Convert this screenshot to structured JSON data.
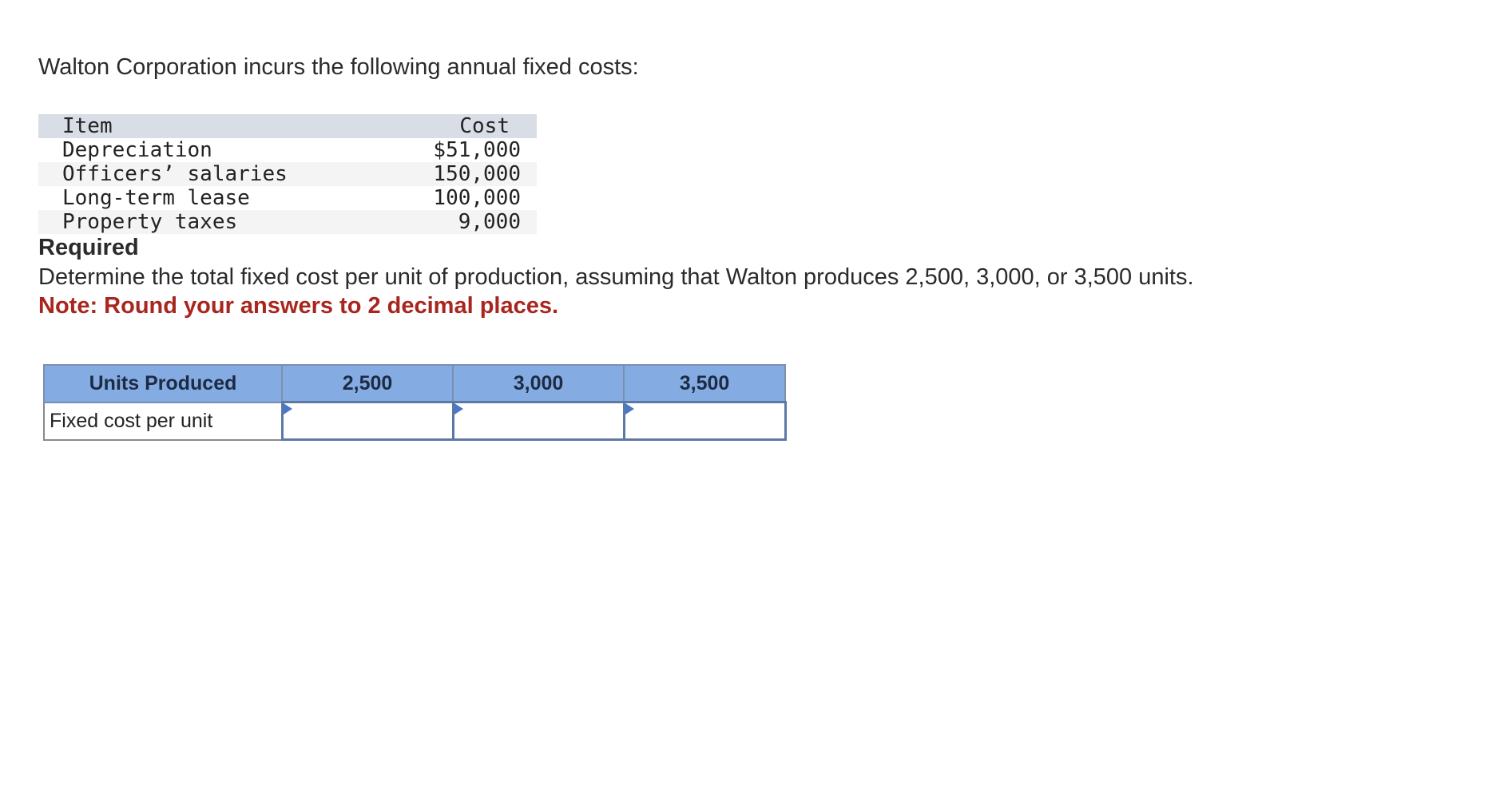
{
  "intro_text": "Walton Corporation incurs the following annual fixed costs:",
  "cost_table": {
    "header_item": "Item",
    "header_cost": "Cost",
    "rows": [
      {
        "item": "Depreciation",
        "cost": "$51,000"
      },
      {
        "item": "Officers’ salaries",
        "cost": "150,000"
      },
      {
        "item": "Long-term lease",
        "cost": "100,000"
      },
      {
        "item": "Property taxes",
        "cost": "9,000"
      }
    ]
  },
  "required_title": "Required",
  "instruction": "Determine the total fixed cost per unit of production, assuming that Walton produces 2,500, 3,000, or 3,500 units.",
  "note": "Note: Round your answers to 2 decimal places.",
  "answer_table": {
    "header_label": "Units Produced",
    "columns": [
      "2,500",
      "3,000",
      "3,500"
    ],
    "row_label": "Fixed cost per unit",
    "inputs": [
      "",
      "",
      ""
    ]
  },
  "colors": {
    "note_red": "#a8261e",
    "header_blue": "#84ace2",
    "input_border": "#5c79a6"
  }
}
